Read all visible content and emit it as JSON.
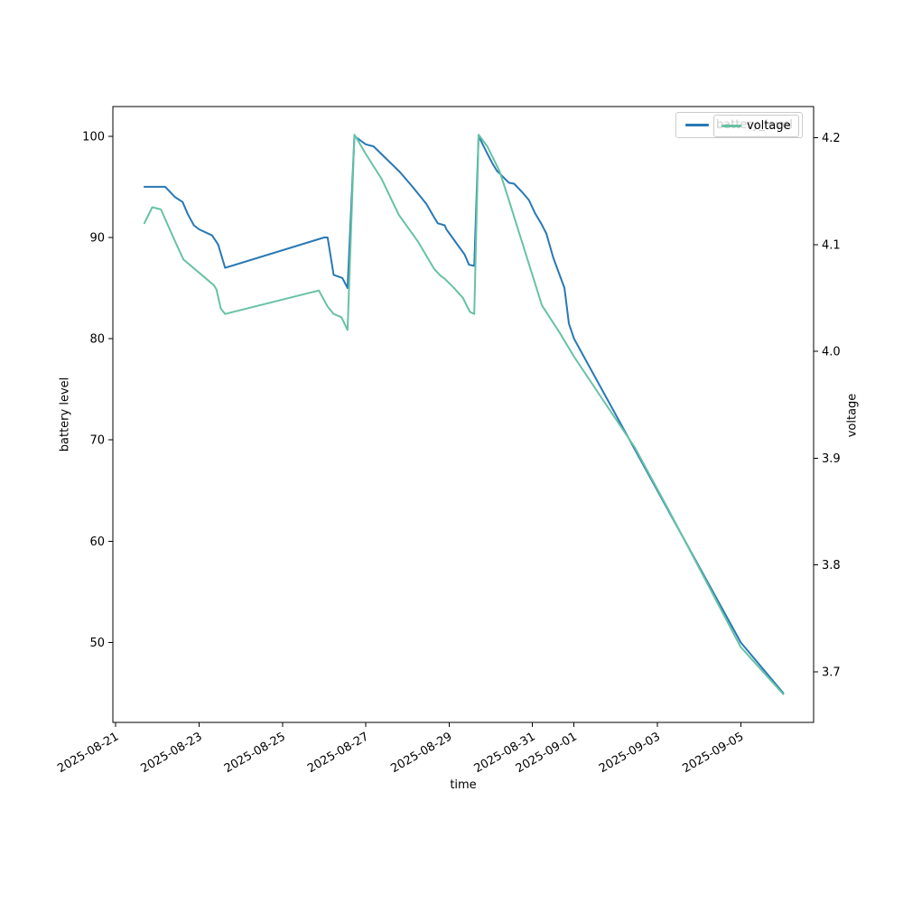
{
  "figure": {
    "background": "#ffffff"
  },
  "axes": {
    "left_label": "battery level",
    "bottom_label": "time",
    "right_label": "voltage"
  },
  "legend": {
    "series1_label": "battery_level",
    "series2_label": "voltage"
  },
  "colors": {
    "battery_line": "#2878b5",
    "voltage_line": "#66c2a5",
    "spine": "#000000",
    "tick_text": "#000000",
    "legend_border": "#cccccc"
  },
  "chart_data": {
    "type": "line",
    "title": "",
    "xlabel": "time",
    "ylabel_left": "battery level",
    "ylabel_right": "voltage",
    "grid": false,
    "legend_position": "upper right",
    "x_base_date": "2025-08-21",
    "xlim_days": [
      -0.07,
      16.75
    ],
    "ylim_left": [
      42.1,
      102.93
    ],
    "ylim_right": [
      3.6525,
      4.2293
    ],
    "x_ticks": [
      {
        "label": "2025-08-21",
        "day": 0
      },
      {
        "label": "2025-08-23",
        "day": 2
      },
      {
        "label": "2025-08-25",
        "day": 4
      },
      {
        "label": "2025-08-27",
        "day": 6
      },
      {
        "label": "2025-08-29",
        "day": 8
      },
      {
        "label": "2025-08-31",
        "day": 10
      },
      {
        "label": "2025-09-01",
        "day": 11
      },
      {
        "label": "2025-09-03",
        "day": 13
      },
      {
        "label": "2025-09-05",
        "day": 15
      }
    ],
    "y_ticks_left": [
      "100",
      "90",
      "80",
      "70",
      "60",
      "50"
    ],
    "y_ticks_right": [
      "4.2",
      "4.1",
      "4.0",
      "3.9",
      "3.8",
      "3.7"
    ],
    "series": [
      {
        "name": "battery_level",
        "axis": "left",
        "color": "#2878b5",
        "points": [
          [
            "2025-08-21T16:30",
            95
          ],
          [
            "2025-08-22T04:30",
            95
          ],
          [
            "2025-08-22T10:00",
            94
          ],
          [
            "2025-08-22T14:30",
            93.5
          ],
          [
            "2025-08-22T17:30",
            92.3
          ],
          [
            "2025-08-22T21:00",
            91.2
          ],
          [
            "2025-08-23T00:00",
            90.8
          ],
          [
            "2025-08-23T07:30",
            90.2
          ],
          [
            "2025-08-23T11:00",
            89.3
          ],
          [
            "2025-08-23T15:00",
            87
          ],
          [
            "2025-08-26T00:00",
            90
          ],
          [
            "2025-08-26T02:00",
            90
          ],
          [
            "2025-08-26T05:30",
            86.3
          ],
          [
            "2025-08-26T10:30",
            86
          ],
          [
            "2025-08-26T13:30",
            85
          ],
          [
            "2025-08-26T17:30",
            100
          ],
          [
            "2025-08-27T00:00",
            99.2
          ],
          [
            "2025-08-27T04:30",
            99
          ],
          [
            "2025-08-27T19:30",
            96.5
          ],
          [
            "2025-08-28T03:00",
            95
          ],
          [
            "2025-08-28T11:00",
            93.3
          ],
          [
            "2025-08-28T15:00",
            92.1
          ],
          [
            "2025-08-28T17:30",
            91.4
          ],
          [
            "2025-08-28T21:30",
            91.2
          ],
          [
            "2025-08-28T22:30",
            90.8
          ],
          [
            "2025-08-29T09:00",
            88.3
          ],
          [
            "2025-08-29T11:30",
            87.3
          ],
          [
            "2025-08-29T14:30",
            87.2
          ],
          [
            "2025-08-29T17:00",
            100
          ],
          [
            "2025-08-29T22:00",
            98.3
          ],
          [
            "2025-08-30T01:00",
            97.3
          ],
          [
            "2025-08-30T03:30",
            96.6
          ],
          [
            "2025-08-30T10:30",
            95.4
          ],
          [
            "2025-08-30T13:30",
            95.3
          ],
          [
            "2025-08-30T18:30",
            94.4
          ],
          [
            "2025-08-30T22:00",
            93.7
          ],
          [
            "2025-08-31T01:30",
            92.4
          ],
          [
            "2025-08-31T05:00",
            91.4
          ],
          [
            "2025-08-31T08:00",
            90.4
          ],
          [
            "2025-08-31T12:00",
            88
          ],
          [
            "2025-08-31T18:30",
            85
          ],
          [
            "2025-08-31T21:00",
            81.5
          ],
          [
            "2025-09-01T00:00",
            80
          ],
          [
            "2025-09-05T00:00",
            50
          ],
          [
            "2025-09-06T00:30",
            45
          ]
        ]
      },
      {
        "name": "voltage",
        "axis": "right",
        "color": "#66c2a5",
        "points": [
          [
            "2025-08-21T16:30",
            4.12
          ],
          [
            "2025-08-21T21:00",
            4.135
          ],
          [
            "2025-08-22T02:00",
            4.133
          ],
          [
            "2025-08-22T11:00",
            4.1
          ],
          [
            "2025-08-22T15:00",
            4.086
          ],
          [
            "2025-08-23T08:30",
            4.062
          ],
          [
            "2025-08-23T10:00",
            4.058
          ],
          [
            "2025-08-23T12:30",
            4.04
          ],
          [
            "2025-08-23T15:00",
            4.035
          ],
          [
            "2025-08-25T21:00",
            4.057
          ],
          [
            "2025-08-26T02:00",
            4.042
          ],
          [
            "2025-08-26T05:30",
            4.035
          ],
          [
            "2025-08-26T10:00",
            4.032
          ],
          [
            "2025-08-26T13:30",
            4.02
          ],
          [
            "2025-08-26T17:30",
            4.203
          ],
          [
            "2025-08-27T00:00",
            4.185
          ],
          [
            "2025-08-27T09:00",
            4.162
          ],
          [
            "2025-08-27T19:00",
            4.128
          ],
          [
            "2025-08-28T06:00",
            4.103
          ],
          [
            "2025-08-28T15:30",
            4.077
          ],
          [
            "2025-08-28T19:00",
            4.071
          ],
          [
            "2025-08-28T21:30",
            4.068
          ],
          [
            "2025-08-29T02:30",
            4.06
          ],
          [
            "2025-08-29T08:00",
            4.05
          ],
          [
            "2025-08-29T12:00",
            4.037
          ],
          [
            "2025-08-29T14:30",
            4.035
          ],
          [
            "2025-08-29T17:00",
            4.203
          ],
          [
            "2025-08-29T22:00",
            4.192
          ],
          [
            "2025-08-30T05:00",
            4.169
          ],
          [
            "2025-08-30T09:00",
            4.149
          ],
          [
            "2025-08-31T05:30",
            4.043
          ],
          [
            "2025-08-31T15:30",
            4.018
          ],
          [
            "2025-09-01T00:00",
            3.995
          ],
          [
            "2025-09-02T11:00",
            3.91
          ],
          [
            "2025-09-03T07:00",
            3.85
          ],
          [
            "2025-09-05T00:00",
            3.723
          ],
          [
            "2025-09-06T00:30",
            3.679
          ]
        ]
      }
    ]
  }
}
